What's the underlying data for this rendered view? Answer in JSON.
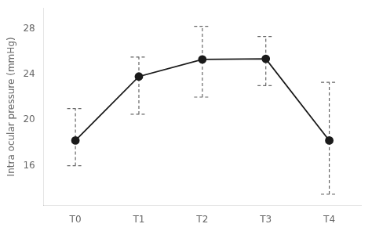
{
  "chart_data": {
    "type": "line",
    "categories": [
      "T0",
      "T1",
      "T2",
      "T3",
      "T4"
    ],
    "values": [
      18.2,
      23.8,
      25.3,
      25.35,
      18.2
    ],
    "error_high": [
      21.0,
      25.5,
      28.2,
      27.3,
      23.3
    ],
    "error_low": [
      16.0,
      20.5,
      22.0,
      23.0,
      13.5
    ],
    "ylabel": "Intra ocular pressure (mmHg)",
    "ylim": [
      12.5,
      29.8
    ],
    "yticks": [
      16,
      20,
      24,
      28
    ],
    "grid": false,
    "color": "#1a1a1a",
    "marker": "circle"
  }
}
